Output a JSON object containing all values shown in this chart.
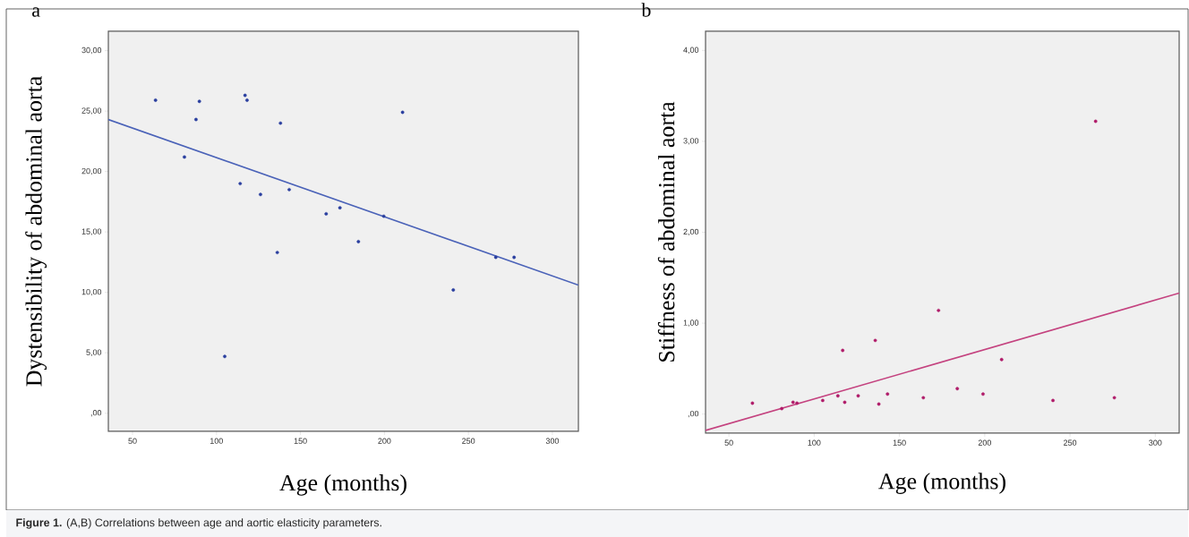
{
  "chart_data": [
    {
      "type": "scatter",
      "title": "a",
      "xlabel": "Age (months)",
      "ylabel": "Dystensibility of abdominal aorta",
      "grid": false,
      "xlim": [
        35.6,
        315.5
      ],
      "ylim": [
        -1.5,
        31.6
      ],
      "xticks": [
        50,
        100,
        150,
        200,
        250,
        300
      ],
      "yticks": [
        {
          "value": 0,
          "label": ",00"
        },
        {
          "value": 5,
          "label": "5,00"
        },
        {
          "value": 10,
          "label": "10,00"
        },
        {
          "value": 15,
          "label": "15,00"
        },
        {
          "value": 20,
          "label": "20,00"
        },
        {
          "value": 25,
          "label": "25,00"
        },
        {
          "value": 30,
          "label": "30,00"
        }
      ],
      "series": [
        {
          "color": "#2a3f9f",
          "marker": "circle",
          "x": [
            63.7,
            80.9,
            87.8,
            89.8,
            104.9,
            114.1,
            117,
            118.2,
            126.2,
            136.2,
            138.1,
            143.3,
            165.3,
            173.5,
            184.5,
            199.6,
            210.8,
            241,
            266.3,
            277.2
          ],
          "values": [
            25.9,
            21.2,
            24.3,
            25.8,
            4.7,
            19.0,
            26.3,
            25.9,
            18.1,
            13.3,
            24.0,
            18.5,
            16.5,
            17.0,
            14.2,
            16.3,
            24.9,
            10.2,
            12.9,
            12.9
          ]
        },
        {
          "type": "line",
          "color": "#4a62b8",
          "line_style": "solid",
          "marker": "none",
          "x": [
            35.6,
            315.5
          ],
          "values": [
            24.3,
            10.6
          ]
        }
      ],
      "annotations": [
        "**Figure 1.** (A,B) Correlations between age and aortic elasticity parameters."
      ]
    },
    {
      "type": "scatter",
      "title": "b",
      "xlabel": "Age (months)",
      "ylabel": "Stiffness of abdominal aorta",
      "grid": false,
      "xlim": [
        36.3,
        314
      ],
      "ylim": [
        -0.21,
        4.21
      ],
      "xticks": [
        50,
        100,
        150,
        200,
        250,
        300
      ],
      "yticks": [
        {
          "value": 0,
          "label": ",00"
        },
        {
          "value": 1,
          "label": "1,00"
        },
        {
          "value": 2,
          "label": "2,00"
        },
        {
          "value": 3,
          "label": "3,00"
        },
        {
          "value": 4,
          "label": "4,00"
        }
      ],
      "series": [
        {
          "color": "#b01c6a",
          "marker": "circle",
          "x": [
            63.8,
            81,
            87.6,
            89.9,
            105,
            113.9,
            116.7,
            117.9,
            125.8,
            135.8,
            137.9,
            143,
            164,
            172.9,
            183.9,
            199,
            209.9,
            240,
            265,
            276
          ],
          "values": [
            0.12,
            0.06,
            0.13,
            0.12,
            0.15,
            0.2,
            0.7,
            0.13,
            0.2,
            0.81,
            0.11,
            0.22,
            0.18,
            1.14,
            0.28,
            0.22,
            0.6,
            0.15,
            3.22,
            0.18
          ]
        },
        {
          "type": "line",
          "color": "#c4427f",
          "line_style": "solid",
          "marker": "none",
          "x": [
            36.3,
            314
          ],
          "values": [
            -0.18,
            1.33
          ]
        }
      ]
    }
  ]
}
